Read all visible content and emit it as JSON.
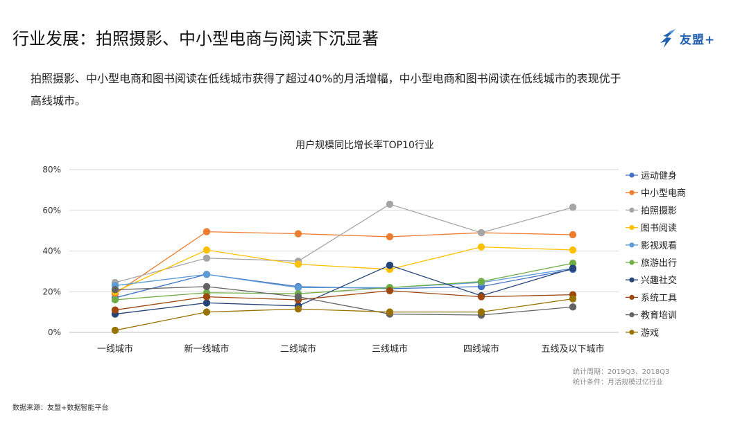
{
  "header": {
    "title": "行业发展：拍照摄影、中小型电商与阅读下沉显著",
    "brand": "友盟+"
  },
  "summary": {
    "line1": "拍照摄影、中小型电商和图书阅读在低线城市获得了超过40%的月活增幅，中小型电商和图书阅读在低线城市的表现优于",
    "line2": "高线城市。"
  },
  "notes": {
    "period": "统计周期：2019Q3、2018Q3",
    "condition": "统计条件：月活规模过亿行业"
  },
  "footer": {
    "source": "数据来源：友盟+数据智能平台"
  },
  "colors": {
    "brand": "#1f5fb0",
    "grid": "#d9d9d9"
  },
  "chart_data": {
    "type": "line",
    "title": "用户规模同比增长率TOP10行业",
    "categories": [
      "一线城市",
      "新一线城市",
      "二线城市",
      "三线城市",
      "四线城市",
      "五线及以下城市"
    ],
    "yticks": [
      "0%",
      "20%",
      "40%",
      "60%",
      "80%"
    ],
    "ylim": [
      0,
      80
    ],
    "unit": "%",
    "grid": true,
    "legend_position": "right",
    "series": [
      {
        "name": "运动健身",
        "color": "#4472c4",
        "values": [
          17,
          28.5,
          22.5,
          21.5,
          22.5,
          31
        ]
      },
      {
        "name": "中小型电商",
        "color": "#ed7d31",
        "values": [
          19,
          49.5,
          48.5,
          47,
          49,
          48
        ]
      },
      {
        "name": "拍照摄影",
        "color": "#a5a5a5",
        "values": [
          24.5,
          36.5,
          35,
          63,
          49,
          61.5
        ]
      },
      {
        "name": "图书阅读",
        "color": "#ffc000",
        "values": [
          20,
          40.5,
          33.5,
          31,
          42,
          40.5
        ]
      },
      {
        "name": "影视观看",
        "color": "#5b9bd5",
        "values": [
          23,
          28.5,
          22,
          22,
          24.5,
          31.5
        ]
      },
      {
        "name": "旅游出行",
        "color": "#70ad47",
        "values": [
          16,
          19.5,
          19,
          22,
          25,
          34
        ]
      },
      {
        "name": "兴趣社交",
        "color": "#264478",
        "values": [
          9,
          14.5,
          13,
          33,
          18,
          31.5
        ]
      },
      {
        "name": "系统工具",
        "color": "#9e480e",
        "values": [
          11,
          17.5,
          16,
          20.5,
          17.5,
          18.5
        ]
      },
      {
        "name": "教育培训",
        "color": "#636363",
        "values": [
          21,
          22.5,
          17.5,
          9,
          8.5,
          12.5
        ]
      },
      {
        "name": "游戏",
        "color": "#997300",
        "values": [
          1,
          10,
          11.5,
          10,
          10,
          16.5
        ]
      }
    ]
  }
}
